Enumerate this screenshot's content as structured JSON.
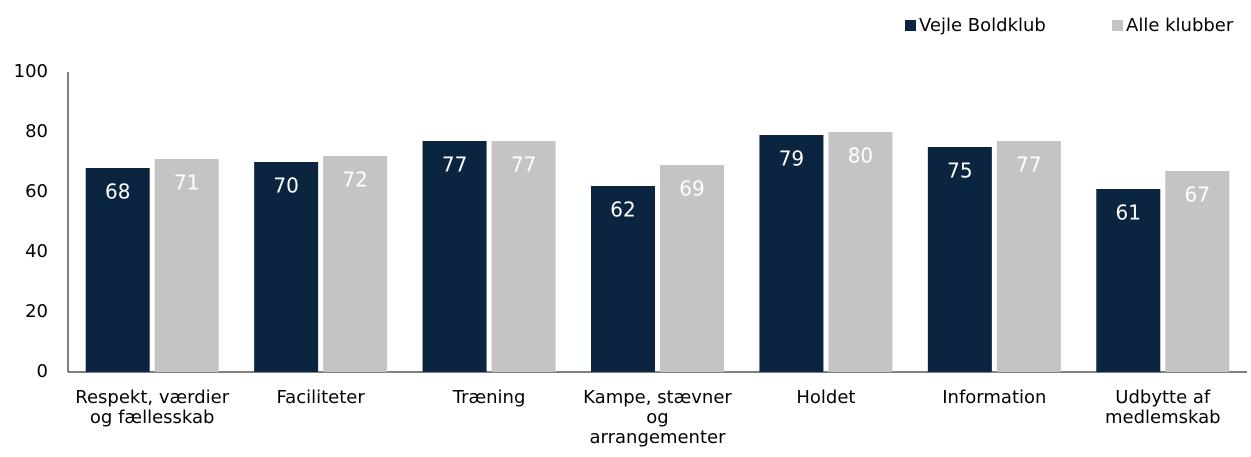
{
  "chart_data": {
    "type": "bar",
    "categories": [
      "Respekt, værdier og fællesskab",
      "Faciliteter",
      "Træning",
      "Kampe, stævner og arrangementer",
      "Holdet",
      "Information",
      "Udbytte af medlemskab"
    ],
    "series": [
      {
        "name": "Vejle Boldklub",
        "color": "#0b2540",
        "values": [
          68,
          70,
          77,
          62,
          79,
          75,
          61
        ]
      },
      {
        "name": "Alle klubber",
        "color": "#c4c4c6",
        "values": [
          71,
          72,
          77,
          69,
          80,
          77,
          67
        ]
      }
    ],
    "ylim": [
      0,
      100
    ],
    "yticks": [
      0,
      20,
      40,
      60,
      80,
      100
    ],
    "grid": false,
    "legend": "top-right"
  }
}
